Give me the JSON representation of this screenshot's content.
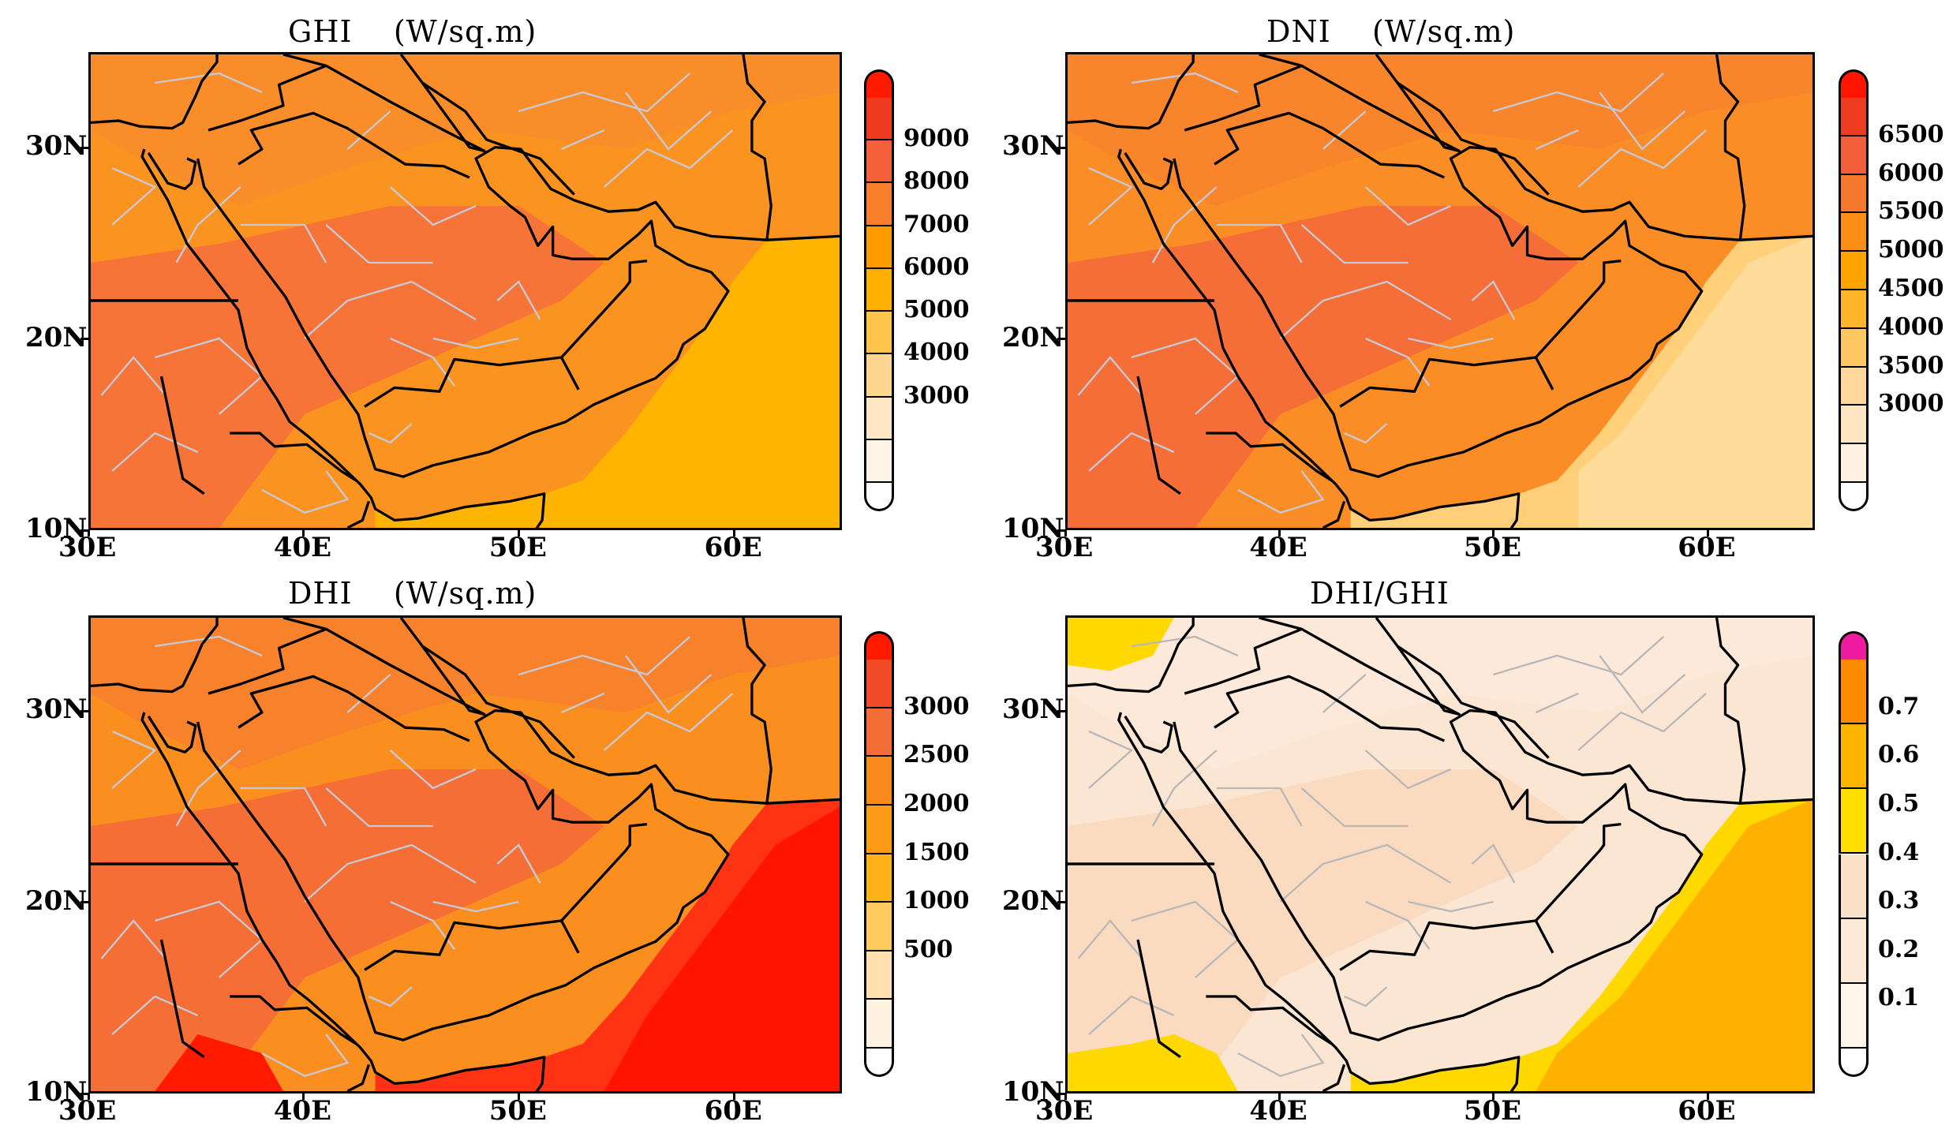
{
  "panels": [
    {
      "title": "GHI    (W/sq.m)",
      "lat_labels": [
        "30N",
        "20N",
        "10N"
      ],
      "lon_labels": [
        "30E",
        "40E",
        "50E",
        "60E"
      ],
      "legend": {
        "labels": [
          "9000",
          "8000",
          "7000",
          "6000",
          "5000",
          "4000",
          "3000"
        ],
        "colors": [
          "#ffffff",
          "#fff4e6",
          "#ffe6c4",
          "#ffd690",
          "#ffc44a",
          "#ffb000",
          "#ff9a00",
          "#f97f2a",
          "#f4603a",
          "#f03a20",
          "#ff1a00"
        ]
      },
      "fills": {
        "sea": "#ffb400",
        "land": "#fb9320",
        "hot": "#f46f3c",
        "warm": "#f88a2e"
      }
    },
    {
      "title": "DNI    (W/sq.m)",
      "lat_labels": [
        "30N",
        "20N",
        "10N"
      ],
      "lon_labels": [
        "30E",
        "40E",
        "50E",
        "60E"
      ],
      "legend": {
        "labels": [
          "6500",
          "6000",
          "5500",
          "5000",
          "4500",
          "4000",
          "3500",
          "3000"
        ],
        "colors": [
          "#ffffff",
          "#fff1e0",
          "#ffe5c2",
          "#ffd79a",
          "#ffc862",
          "#ffb52a",
          "#ffa300",
          "#fb8e14",
          "#f6782e",
          "#f25e3a",
          "#ee3c20",
          "#ff1500"
        ]
      },
      "fills": {
        "sea": "#ffcf7a",
        "land": "#fa8d25",
        "hot": "#f3693b",
        "warm": "#f7812f"
      }
    },
    {
      "title": "DHI    (W/sq.m)",
      "lat_labels": [
        "30N",
        "20N",
        "10N"
      ],
      "lon_labels": [
        "30E",
        "40E",
        "50E",
        "60E"
      ],
      "legend": {
        "labels": [
          "3000",
          "2500",
          "2000",
          "1500",
          "1000",
          "500"
        ],
        "colors": [
          "#ffffff",
          "#fff2e0",
          "#ffe0b0",
          "#ffca60",
          "#ffb21a",
          "#fb9b16",
          "#f88b1c",
          "#f46d36",
          "#f04a26",
          "#ff1a00"
        ]
      },
      "fills": {
        "sea": "#ff3214",
        "land": "#fa8f20",
        "hot": "#f3693a",
        "warm": "#f67c30"
      }
    },
    {
      "title": "DHI/GHI",
      "lat_labels": [
        "30N",
        "20N",
        "10N"
      ],
      "lon_labels": [
        "30E",
        "40E",
        "50E",
        "60E"
      ],
      "legend": {
        "labels": [
          "0.7",
          "0.6",
          "0.5",
          "0.4",
          "0.3",
          "0.2",
          "0.1"
        ],
        "colors": [
          "#ffffff",
          "#fff4ea",
          "#fde9d8",
          "#fbe0c8",
          "#ffde00",
          "#ffb400",
          "#ff8c00",
          "#ee1aa0"
        ]
      },
      "fills": {
        "sea": "#ffd800",
        "land": "#fbe6d4",
        "hot": "#f9d8bc",
        "warm": "#fce9db"
      }
    }
  ]
}
